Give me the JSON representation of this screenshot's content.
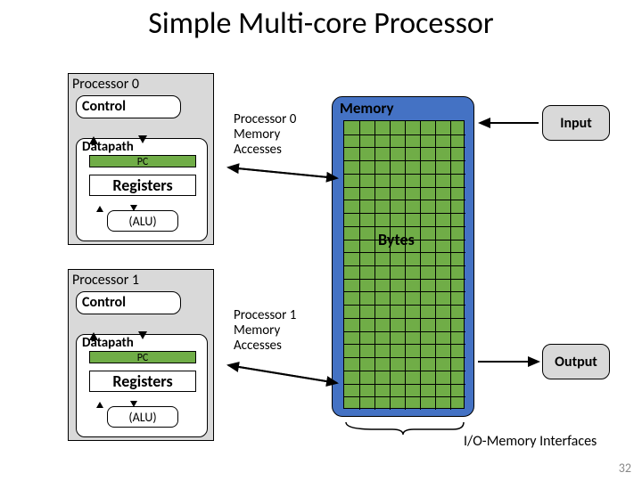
{
  "title": "Simple Multi-core Processor",
  "slide_number": "32",
  "colors": {
    "box_bg": "#d9d9d9",
    "green": "#70ad47",
    "memory_blue": "#4472c4",
    "border": "#000000",
    "text": "#000000"
  },
  "proc0": {
    "label": "Processor 0",
    "control": "Control",
    "datapath": "Datapath",
    "pc": "PC",
    "registers": "Registers",
    "alu": "(ALU)"
  },
  "proc1": {
    "label": "Processor 1",
    "control": "Control",
    "datapath": "Datapath",
    "pc": "PC",
    "registers": "Registers",
    "alu": "(ALU)"
  },
  "memory": {
    "label": "Memory",
    "bytes": "Bytes"
  },
  "io": {
    "input": "Input",
    "output": "Output",
    "interfaces": "I/O-Memory Interfaces"
  },
  "access0": "Processor 0\nMemory\nAccesses",
  "access1": "Processor 1\nMemory\nAccesses",
  "memory_grid": {
    "rows": 22,
    "cols": 8
  }
}
